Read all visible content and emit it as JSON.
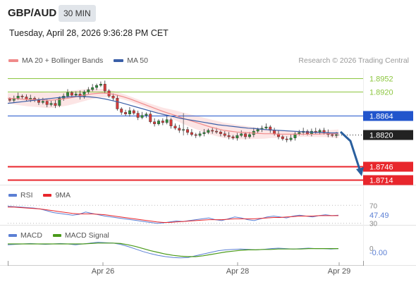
{
  "header": {
    "pair": "GBP/AUD",
    "timeframe": "30 MIN",
    "datetime": "Tuesday, April 28, 2026 9:36:28 PM CET"
  },
  "legend": {
    "ma20": "MA 20 + Bollinger Bands",
    "ma50": "MA 50",
    "copyright": "Research © 2026 Trading Central"
  },
  "colors": {
    "ma20": "#f08a8a",
    "ma50": "#3a5fa8",
    "green_level": "#8cc63f",
    "blue_level": "#2255cc",
    "red_level": "#e8262c",
    "current_price": "#222222",
    "bollinger_fill": "#fbdcdc",
    "rsi": "#5b7fd4",
    "rsi_ma": "#e8262c",
    "macd": "#5b7fd4",
    "macd_signal": "#4a9a1a",
    "candle_up": "#2e8b3a",
    "candle_down": "#d23a3a",
    "arrow": "#2a5f9e"
  },
  "chart_data": [
    {
      "type": "line",
      "chart": "price",
      "title": "GBP/AUD",
      "xlabel": "",
      "ylabel": "",
      "x_ticks": [
        "Apr 26",
        "Apr 28",
        "Apr 29"
      ],
      "ylim": [
        1.8703,
        1.8973
      ],
      "levels": [
        {
          "value": 1.8952,
          "label": "1.8952",
          "kind": "resistance"
        },
        {
          "value": 1.892,
          "label": "1.8920",
          "kind": "resistance"
        },
        {
          "value": 1.8864,
          "label": "1.8864",
          "kind": "pivot"
        },
        {
          "value": 1.882,
          "label": "1.8820",
          "kind": "current"
        },
        {
          "value": 1.8746,
          "label": "1.8746",
          "kind": "support"
        },
        {
          "value": 1.8714,
          "label": "1.8714",
          "kind": "support"
        }
      ],
      "series": [
        {
          "name": "Price",
          "type": "candlestick",
          "style": "close-path",
          "values": [
            1.89,
            1.8905,
            1.891,
            1.8908,
            1.8902,
            1.8905,
            1.89,
            1.8895,
            1.8898,
            1.889,
            1.8893,
            1.8888,
            1.8905,
            1.891,
            1.8918,
            1.8912,
            1.8915,
            1.8908,
            1.892,
            1.8925,
            1.893,
            1.8935,
            1.8938,
            1.8922,
            1.891,
            1.8905,
            1.888,
            1.8872,
            1.8868,
            1.8876,
            1.887,
            1.886,
            1.8865,
            1.8868,
            1.885,
            1.8845,
            1.8852,
            1.8848,
            1.8855,
            1.884,
            1.8835,
            1.883,
            1.8832,
            1.8825,
            1.882,
            1.8818,
            1.8822,
            1.8825,
            1.883,
            1.8828,
            1.8826,
            1.8822,
            1.8818,
            1.8815,
            1.8812,
            1.8818,
            1.8822,
            1.8815,
            1.882,
            1.8828,
            1.8832,
            1.8835,
            1.8838,
            1.883,
            1.8822,
            1.8815,
            1.881,
            1.8808,
            1.8812,
            1.8822,
            1.8825,
            1.8828,
            1.8822,
            1.8828,
            1.8826,
            1.883,
            1.8824,
            1.882,
            1.8818,
            1.882
          ]
        },
        {
          "name": "MA 20",
          "values": [
            1.8905,
            1.8904,
            1.8903,
            1.8902,
            1.8902,
            1.8901,
            1.89,
            1.8901,
            1.8903,
            1.8905,
            1.8908,
            1.8911,
            1.8914,
            1.8916,
            1.8917,
            1.8916,
            1.8913,
            1.8909,
            1.8904,
            1.8898,
            1.8892,
            1.8886,
            1.888,
            1.8874,
            1.8869,
            1.8864,
            1.8858,
            1.8853,
            1.8848,
            1.8843,
            1.8838,
            1.8834,
            1.883,
            1.8828,
            1.8826,
            1.8825,
            1.8824,
            1.8823,
            1.8822,
            1.8822,
            1.8821,
            1.8821,
            1.8821,
            1.8821,
            1.8821,
            1.8821,
            1.8821,
            1.8822,
            1.8822,
            1.8822
          ]
        },
        {
          "name": "MA 50",
          "values": [
            1.8893,
            1.8895,
            1.8897,
            1.8899,
            1.8901,
            1.8903,
            1.8905,
            1.8907,
            1.8908,
            1.8909,
            1.8909,
            1.8908,
            1.8906,
            1.8903,
            1.8899,
            1.8895,
            1.889,
            1.8885,
            1.888,
            1.8875,
            1.887,
            1.8866,
            1.8862,
            1.8858,
            1.8855,
            1.8852,
            1.8849,
            1.8846,
            1.8843,
            1.8841,
            1.8839,
            1.8837,
            1.8835,
            1.8834,
            1.8832,
            1.8831,
            1.883,
            1.8829,
            1.8828,
            1.8827,
            1.8826,
            1.8825,
            1.8825,
            1.8824,
            1.8824
          ]
        }
      ],
      "legend_position": "top-left",
      "grid": false
    },
    {
      "type": "line",
      "chart": "RSI",
      "title": "",
      "xlabel": "",
      "ylabel": "",
      "legend": [
        "RSI",
        "9MA"
      ],
      "ylim": [
        28,
        72
      ],
      "reference_lines": [
        {
          "value": 70,
          "label": "70"
        },
        {
          "value": 30,
          "label": "30"
        }
      ],
      "current_value": "47.49",
      "series": [
        {
          "name": "RSI",
          "values": [
            68,
            67,
            66,
            65,
            64,
            62,
            58,
            54,
            52,
            50,
            48,
            50,
            55,
            52,
            49,
            46,
            44,
            42,
            40,
            38,
            36,
            34,
            32,
            30,
            31,
            33,
            35,
            34,
            36,
            38,
            40,
            42,
            38,
            36,
            40,
            44,
            42,
            38,
            36,
            40,
            44,
            46,
            44,
            42,
            46,
            48,
            46,
            44,
            47,
            49,
            47,
            48
          ]
        },
        {
          "name": "9MA",
          "values": [
            66,
            66,
            65,
            64,
            63,
            62,
            60,
            58,
            56,
            54,
            52,
            51,
            51,
            51,
            50,
            49,
            47,
            45,
            43,
            41,
            39,
            37,
            35,
            33,
            32,
            32,
            33,
            34,
            35,
            36,
            37,
            38,
            38,
            38,
            39,
            40,
            40,
            40,
            40,
            41,
            42,
            43,
            43,
            44,
            45,
            46,
            46,
            46,
            47,
            47,
            47,
            47
          ]
        }
      ]
    },
    {
      "type": "line",
      "chart": "MACD",
      "title": "",
      "xlabel": "",
      "ylabel": "",
      "legend": [
        "MACD",
        "MACD Signal"
      ],
      "ylim": [
        -0.003,
        0.002
      ],
      "reference_lines": [
        {
          "value": 0,
          "label": "0"
        }
      ],
      "current_value": "-0.00",
      "series": [
        {
          "name": "MACD",
          "values": [
            0.0008,
            0.0009,
            0.001,
            0.0011,
            0.001,
            0.0009,
            0.001,
            0.0011,
            0.001,
            0.0008,
            0.001,
            0.0012,
            0.0014,
            0.0013,
            0.0012,
            0.0009,
            0.0004,
            -0.0002,
            -0.0008,
            -0.0013,
            -0.0017,
            -0.002,
            -0.0022,
            -0.0023,
            -0.0022,
            -0.0018,
            -0.0014,
            -0.001,
            -0.0006,
            -0.0004,
            -0.0003,
            -0.0002,
            -0.0003,
            -0.0004,
            -0.0003,
            -0.0001,
            0.0,
            -0.0001,
            -0.0002,
            -0.0001,
            0.0,
            -0.0001,
            -0.0001,
            -0.0002,
            -0.0001
          ]
        },
        {
          "name": "MACD Signal",
          "values": [
            0.001,
            0.001,
            0.001,
            0.001,
            0.001,
            0.001,
            0.001,
            0.001,
            0.001,
            0.001,
            0.001,
            0.0011,
            0.0012,
            0.0012,
            0.0012,
            0.0011,
            0.0008,
            0.0004,
            -0.0001,
            -0.0006,
            -0.001,
            -0.0014,
            -0.0017,
            -0.0019,
            -0.002,
            -0.002,
            -0.0018,
            -0.0015,
            -0.0012,
            -0.0009,
            -0.0007,
            -0.0005,
            -0.0004,
            -0.0004,
            -0.0003,
            -0.0003,
            -0.0002,
            -0.0002,
            -0.0002,
            -0.0002,
            -0.0001,
            -0.0001,
            -0.0001,
            -0.0001,
            -0.0001
          ]
        }
      ]
    }
  ]
}
